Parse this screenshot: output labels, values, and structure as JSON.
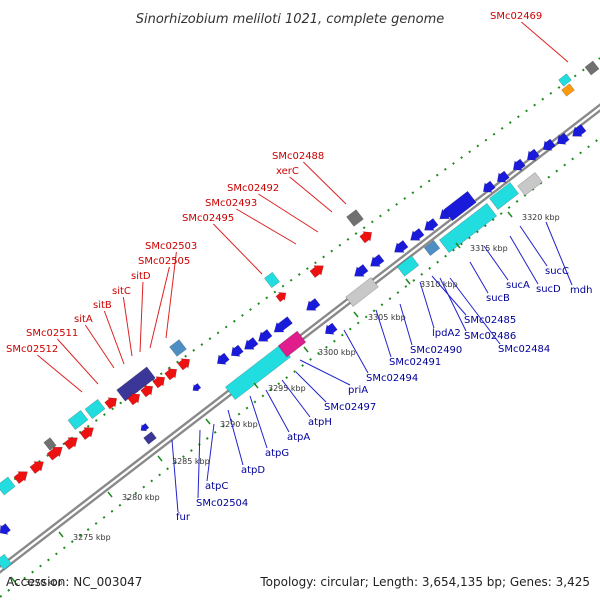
{
  "title": "Sinorhizobium meliloti 1021, complete genome",
  "footer": {
    "accession": "Accession: NC_003047",
    "summary": "Topology: circular; Length: 3,654,135 bp; Genes: 3,425"
  },
  "colors": {
    "blue": "#1a1adb",
    "red": "#ee1111",
    "cyan": "#22dde0",
    "steel": "#4d8ec4",
    "purple": "#3a3799",
    "magenta": "#e01d8c",
    "gray": "#707070",
    "lightgray": "#c8c8c8",
    "orange": "#ff9a10",
    "green": "#1e8a1e",
    "label_red": "#cc0000",
    "label_blue": "#00009a"
  },
  "ticks": [
    {
      "label": "3270 kbp"
    },
    {
      "label": "3275 kbp"
    },
    {
      "label": "3280 kbp"
    },
    {
      "label": "3285 kbp"
    },
    {
      "label": "3290 kbp"
    },
    {
      "label": "3295 kbp"
    },
    {
      "label": "3300 kbp"
    },
    {
      "label": "3305 kbp"
    },
    {
      "label": "3310 kbp"
    },
    {
      "label": "3315 kbp"
    },
    {
      "label": "3320 kbp"
    }
  ],
  "outer_labels": [
    {
      "name": "SMc02512",
      "color": "label_red"
    },
    {
      "name": "SMc02511",
      "color": "label_red"
    },
    {
      "name": "sitA",
      "color": "label_red"
    },
    {
      "name": "sitB",
      "color": "label_red"
    },
    {
      "name": "sitC",
      "color": "label_red"
    },
    {
      "name": "sitD",
      "color": "label_red"
    },
    {
      "name": "SMc02505",
      "color": "label_red"
    },
    {
      "name": "SMc02503",
      "color": "label_red"
    },
    {
      "name": "SMc02495",
      "color": "label_red"
    },
    {
      "name": "SMc02493",
      "color": "label_red"
    },
    {
      "name": "SMc02492",
      "color": "label_red"
    },
    {
      "name": "xerC",
      "color": "label_red"
    },
    {
      "name": "SMc02488",
      "color": "label_red"
    },
    {
      "name": "SMc02469",
      "color": "label_red"
    }
  ],
  "inner_labels": [
    {
      "name": "fur",
      "color": "label_blue"
    },
    {
      "name": "SMc02504",
      "color": "label_blue"
    },
    {
      "name": "atpC",
      "color": "label_blue"
    },
    {
      "name": "atpD",
      "color": "label_blue"
    },
    {
      "name": "atpG",
      "color": "label_blue"
    },
    {
      "name": "atpA",
      "color": "label_blue"
    },
    {
      "name": "atpH",
      "color": "label_blue"
    },
    {
      "name": "SMc02497",
      "color": "label_blue"
    },
    {
      "name": "priA",
      "color": "label_blue"
    },
    {
      "name": "SMc02494",
      "color": "label_blue"
    },
    {
      "name": "SMc02491",
      "color": "label_blue"
    },
    {
      "name": "SMc02490",
      "color": "label_blue"
    },
    {
      "name": "lpdA2",
      "color": "label_blue"
    },
    {
      "name": "SMc02485",
      "color": "label_blue"
    },
    {
      "name": "SMc02486",
      "color": "label_blue"
    },
    {
      "name": "SMc02484",
      "color": "label_blue"
    },
    {
      "name": "sucB",
      "color": "label_blue"
    },
    {
      "name": "sucA",
      "color": "label_blue"
    },
    {
      "name": "sucD",
      "color": "label_blue"
    },
    {
      "name": "sucC",
      "color": "label_blue"
    },
    {
      "name": "mdh",
      "color": "label_blue"
    }
  ]
}
